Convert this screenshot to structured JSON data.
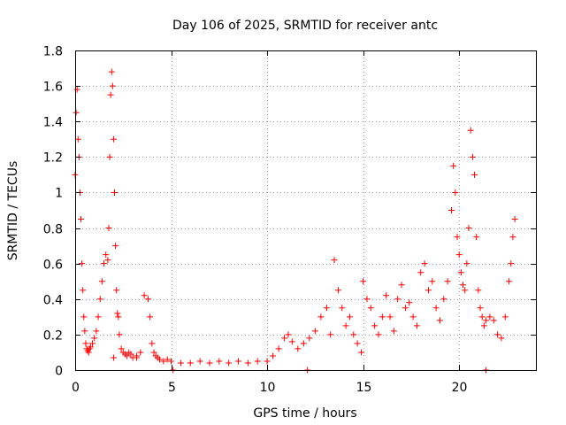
{
  "chart_data": {
    "type": "scatter",
    "title": "Day 106 of 2025, SRMTID for receiver antc",
    "xlabel": "GPS time / hours",
    "ylabel": "SRMTID / TECUs",
    "xlim": [
      0,
      24
    ],
    "ylim": [
      0,
      1.8
    ],
    "grid": true,
    "marker": "plus",
    "color": "#ff0000",
    "xticks": [
      0,
      5,
      10,
      15,
      20
    ],
    "xtick_labels": [
      "0",
      "5",
      "10",
      "15",
      "20"
    ],
    "yticks": [
      0,
      0.2,
      0.4,
      0.6,
      0.8,
      1,
      1.2,
      1.4,
      1.6,
      1.8
    ],
    "ytick_labels": [
      "0",
      "0.2",
      "0.4",
      "0.6",
      "0.8",
      "1",
      "1.2",
      "1.4",
      "1.6",
      "1.8"
    ],
    "series": [
      {
        "name": "SRMTID",
        "x": [
          0.0,
          0.05,
          0.1,
          0.15,
          0.2,
          0.25,
          0.3,
          0.35,
          0.4,
          0.45,
          0.5,
          0.55,
          0.6,
          0.65,
          0.7,
          0.75,
          0.8,
          0.9,
          1.0,
          1.1,
          1.2,
          1.3,
          1.4,
          1.5,
          1.6,
          1.7,
          1.75,
          1.8,
          1.85,
          1.9,
          1.95,
          2.0,
          2.05,
          2.1,
          2.15,
          2.2,
          2.25,
          2.3,
          2.4,
          2.5,
          2.6,
          2.7,
          2.8,
          2.9,
          3.0,
          3.2,
          3.4,
          3.6,
          3.8,
          3.9,
          4.0,
          4.1,
          4.2,
          4.3,
          4.4,
          4.6,
          4.8,
          5.0,
          5.5,
          6.0,
          6.5,
          7.0,
          7.5,
          8.0,
          8.5,
          9.0,
          9.5,
          10.0,
          10.3,
          10.6,
          10.9,
          11.1,
          11.3,
          11.6,
          11.9,
          12.2,
          12.5,
          12.8,
          13.1,
          13.3,
          13.5,
          13.7,
          13.9,
          14.1,
          14.3,
          14.5,
          14.7,
          14.9,
          15.0,
          15.2,
          15.4,
          15.6,
          15.8,
          16.0,
          16.2,
          16.4,
          16.6,
          16.8,
          17.0,
          17.2,
          17.4,
          17.6,
          17.8,
          18.0,
          18.2,
          18.4,
          18.6,
          18.8,
          19.0,
          19.2,
          19.4,
          19.6,
          19.7,
          19.8,
          19.9,
          20.0,
          20.1,
          20.2,
          20.3,
          20.4,
          20.5,
          20.6,
          20.7,
          20.8,
          20.9,
          21.0,
          21.1,
          21.2,
          21.3,
          21.4,
          21.6,
          21.8,
          22.0,
          22.2,
          22.4,
          22.6,
          22.7,
          22.8,
          22.9,
          2.0,
          3.2,
          5.1,
          12.1,
          21.4
        ],
        "y": [
          1.1,
          1.45,
          1.58,
          1.3,
          1.2,
          1.0,
          0.85,
          0.6,
          0.45,
          0.3,
          0.22,
          0.15,
          0.12,
          0.11,
          0.1,
          0.12,
          0.13,
          0.15,
          0.18,
          0.22,
          0.3,
          0.4,
          0.5,
          0.6,
          0.65,
          0.62,
          0.8,
          1.2,
          1.55,
          1.68,
          1.6,
          1.3,
          1.0,
          0.7,
          0.45,
          0.32,
          0.3,
          0.2,
          0.12,
          0.1,
          0.09,
          0.08,
          0.1,
          0.09,
          0.07,
          0.08,
          0.1,
          0.42,
          0.4,
          0.3,
          0.15,
          0.1,
          0.08,
          0.07,
          0.06,
          0.05,
          0.06,
          0.05,
          0.04,
          0.04,
          0.05,
          0.04,
          0.05,
          0.04,
          0.05,
          0.04,
          0.05,
          0.05,
          0.08,
          0.12,
          0.18,
          0.2,
          0.16,
          0.12,
          0.15,
          0.18,
          0.22,
          0.3,
          0.35,
          0.2,
          0.62,
          0.45,
          0.35,
          0.25,
          0.3,
          0.2,
          0.15,
          0.1,
          0.5,
          0.4,
          0.35,
          0.25,
          0.2,
          0.3,
          0.42,
          0.3,
          0.22,
          0.4,
          0.48,
          0.35,
          0.38,
          0.3,
          0.25,
          0.55,
          0.6,
          0.45,
          0.5,
          0.35,
          0.28,
          0.4,
          0.5,
          0.9,
          1.15,
          1.0,
          0.75,
          0.65,
          0.55,
          0.48,
          0.45,
          0.6,
          0.8,
          1.35,
          1.2,
          1.1,
          0.75,
          0.45,
          0.35,
          0.3,
          0.25,
          0.28,
          0.3,
          0.28,
          0.2,
          0.18,
          0.3,
          0.5,
          0.6,
          0.75,
          0.85,
          0.07,
          0.07,
          0.0,
          0.0,
          0.0
        ]
      }
    ]
  }
}
